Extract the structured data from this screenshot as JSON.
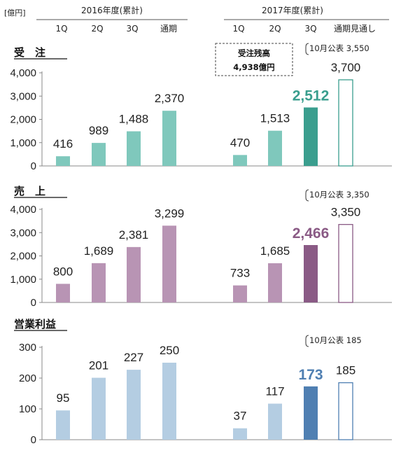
{
  "unit_label": "[億円]",
  "header": {
    "group_2016": "2016年度(累計)",
    "group_2017": "2017年度(累計)",
    "cols_2016": [
      "1Q",
      "2Q",
      "3Q",
      "通期"
    ],
    "cols_2017": [
      "1Q",
      "2Q",
      "3Q",
      "通期見通し"
    ]
  },
  "backlog_box": {
    "line1": "受注残高",
    "line2": "4,938億円"
  },
  "chart_data": [
    {
      "type": "bar",
      "title": "受　注",
      "categories": [
        "2016 1Q",
        "2016 2Q",
        "2016 3Q",
        "2016 通期",
        "2017 1Q",
        "2017 2Q",
        "2017 3Q",
        "2017 通期見通し"
      ],
      "values": [
        416,
        989,
        1488,
        2370,
        470,
        1513,
        2512,
        3700
      ],
      "labels": [
        "416",
        "989",
        "1,488",
        "2,370",
        "470",
        "1,513",
        "2,512",
        "3,700"
      ],
      "ylim": [
        0,
        4000
      ],
      "yticks": [
        "0",
        "1,000",
        "2,000",
        "3,000",
        "4,000"
      ],
      "ytick_values": [
        0,
        1000,
        2000,
        3000,
        4000
      ],
      "note": "10月公表 3,550",
      "colors": {
        "light": "#7fc8bc",
        "highlight": "#3a9e8e",
        "forecast_border": "#3a9e8e"
      }
    },
    {
      "type": "bar",
      "title": "売　上",
      "categories": [
        "2016 1Q",
        "2016 2Q",
        "2016 3Q",
        "2016 通期",
        "2017 1Q",
        "2017 2Q",
        "2017 3Q",
        "2017 通期見通し"
      ],
      "values": [
        800,
        1689,
        2381,
        3299,
        733,
        1685,
        2466,
        3350
      ],
      "labels": [
        "800",
        "1,689",
        "2,381",
        "3,299",
        "733",
        "1,685",
        "2,466",
        "3,350"
      ],
      "ylim": [
        0,
        4000
      ],
      "yticks": [
        "0",
        "1,000",
        "2,000",
        "3,000",
        "4,000"
      ],
      "ytick_values": [
        0,
        1000,
        2000,
        3000,
        4000
      ],
      "note": "10月公表 3,350",
      "colors": {
        "light": "#b894b4",
        "highlight": "#8a5a85",
        "forecast_border": "#8a5a85"
      }
    },
    {
      "type": "bar",
      "title": "営業利益",
      "categories": [
        "2016 1Q",
        "2016 2Q",
        "2016 3Q",
        "2016 通期",
        "2017 1Q",
        "2017 2Q",
        "2017 3Q",
        "2017 通期見通し"
      ],
      "values": [
        95,
        201,
        227,
        250,
        37,
        117,
        173,
        185
      ],
      "labels": [
        "95",
        "201",
        "227",
        "250",
        "37",
        "117",
        "173",
        "185"
      ],
      "ylim": [
        0,
        300
      ],
      "yticks": [
        "0",
        "100",
        "200",
        "300"
      ],
      "ytick_values": [
        0,
        100,
        200,
        300
      ],
      "note": "10月公表 185",
      "colors": {
        "light": "#b4cde2",
        "highlight": "#4f7fb2",
        "forecast_border": "#4f7fb2"
      }
    }
  ]
}
